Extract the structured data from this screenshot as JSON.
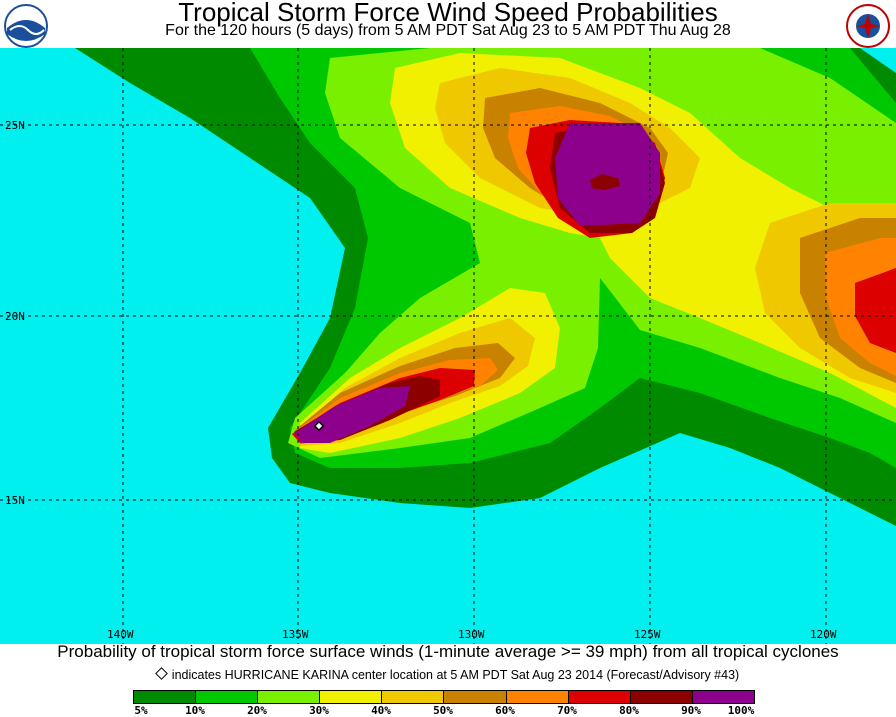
{
  "header": {
    "title": "Tropical Storm Force Wind Speed Probabilities",
    "subtitle": "For the 120 hours (5 days) from 5 AM PDT Sat Aug 23 to 5 AM PDT Thu Aug 28",
    "left_logo": "NOAA",
    "right_logo": "NATIONAL WEATHER SERVICE"
  },
  "map": {
    "ocean_color": "#00f0f0",
    "lat_labels": [
      "25N",
      "20N",
      "15N"
    ],
    "lon_labels": [
      "140W",
      "135W",
      "130W",
      "125W",
      "120W"
    ],
    "storm_marker": "HURRICANE KARINA center"
  },
  "footer": {
    "caption": "Probability of tropical storm force surface winds (1-minute average >= 39 mph) from all tropical cyclones",
    "note": "indicates HURRICANE KARINA center location at 5 AM PDT Sat Aug 23 2014 (Forecast/Advisory #43)"
  },
  "legend": {
    "colors": [
      "#008a00",
      "#00c800",
      "#78f000",
      "#f0f000",
      "#f0c800",
      "#c88200",
      "#ff8200",
      "#dc0000",
      "#8c0000",
      "#8c008c"
    ],
    "labels": [
      "5%",
      "10%",
      "20%",
      "30%",
      "40%",
      "50%",
      "60%",
      "70%",
      "80%",
      "90%",
      "100%"
    ]
  }
}
